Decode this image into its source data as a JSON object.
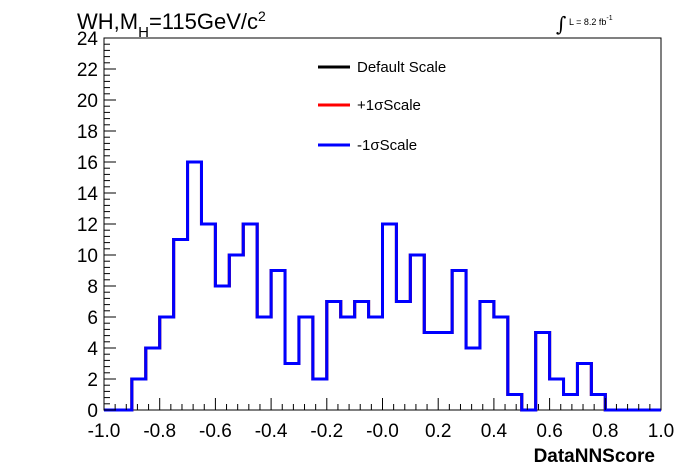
{
  "header": {
    "title_prefix": "WH,M",
    "title_sub": "H",
    "title_mid": "=115GeV/c",
    "title_sup": "2",
    "lumi_symbol": "∫",
    "lumi_text": "L = 8.2 fb",
    "lumi_sup": "-1"
  },
  "colors": {
    "default_scale": "#000000",
    "plus_one_sigma": "#ff0000",
    "minus_one_sigma": "#0000ff"
  },
  "chart_data": {
    "type": "histogram",
    "title": "WH,M_H=115GeV/c^2",
    "xlabel": "DataNNScore",
    "ylabel": "",
    "xlim": [
      -1.0,
      1.0
    ],
    "ylim": [
      0,
      24
    ],
    "x_ticks": [
      "-1.0",
      "-0.8",
      "-0.6",
      "-0.4",
      "-0.2",
      "-0.0",
      "0.2",
      "0.4",
      "0.6",
      "0.8",
      "1.0"
    ],
    "x_tick_values": [
      -1.0,
      -0.8,
      -0.6,
      -0.4,
      -0.2,
      0.0,
      0.2,
      0.4,
      0.6,
      0.8,
      1.0
    ],
    "y_ticks": [
      0,
      2,
      4,
      6,
      8,
      10,
      12,
      14,
      16,
      18,
      20,
      22,
      24
    ],
    "bin_edges": [
      -1.0,
      -0.95,
      -0.9,
      -0.85,
      -0.8,
      -0.75,
      -0.7,
      -0.65,
      -0.6,
      -0.55,
      -0.5,
      -0.45,
      -0.4,
      -0.35,
      -0.3,
      -0.25,
      -0.2,
      -0.15,
      -0.1,
      -0.05,
      0.0,
      0.05,
      0.1,
      0.15,
      0.2,
      0.25,
      0.3,
      0.35,
      0.4,
      0.45,
      0.5,
      0.55,
      0.6,
      0.65,
      0.7,
      0.75,
      0.8,
      0.85,
      0.9,
      0.95,
      1.0
    ],
    "legend_position": "top-center",
    "series": [
      {
        "name": "Default Scale",
        "color": "#000000",
        "values": [
          0,
          0,
          2,
          4,
          6,
          11,
          16,
          12,
          8,
          10,
          12,
          6,
          9,
          3,
          6,
          2,
          7,
          6,
          7,
          6,
          12,
          7,
          10,
          5,
          5,
          9,
          4,
          7,
          6,
          1,
          0,
          5,
          2,
          1,
          3,
          1,
          0,
          0,
          0,
          0
        ]
      },
      {
        "name": "+1σScale",
        "color": "#ff0000",
        "values": [
          0,
          0,
          2,
          4,
          6,
          11,
          16,
          12,
          8,
          10,
          12,
          6,
          9,
          3,
          6,
          2,
          7,
          6,
          7,
          6,
          12,
          7,
          10,
          5,
          5,
          9,
          4,
          7,
          6,
          1,
          0,
          5,
          2,
          1,
          3,
          1,
          0,
          0,
          0,
          0
        ]
      },
      {
        "name": "-1σScale",
        "color": "#0000ff",
        "values": [
          0,
          0,
          2,
          4,
          6,
          11,
          16,
          12,
          8,
          10,
          12,
          6,
          9,
          3,
          6,
          2,
          7,
          6,
          7,
          6,
          12,
          7,
          10,
          5,
          5,
          9,
          4,
          7,
          6,
          1,
          0,
          5,
          2,
          1,
          3,
          1,
          0,
          0,
          0,
          0
        ]
      }
    ]
  }
}
